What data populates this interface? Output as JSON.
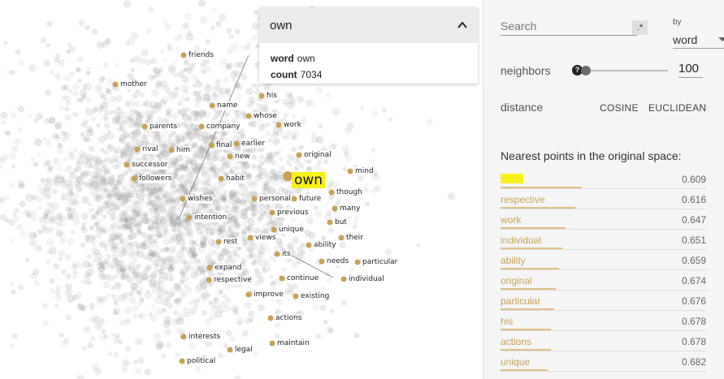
{
  "scatter": {
    "cloud_color": "#888888",
    "point_color": "#c9a155",
    "labels": [
      {
        "id": "friends",
        "text": "friends"
      },
      {
        "id": "mother",
        "text": "mother"
      },
      {
        "id": "his",
        "text": "his"
      },
      {
        "id": "name",
        "text": "name"
      },
      {
        "id": "whose",
        "text": "whose"
      },
      {
        "id": "parents",
        "text": "parents"
      },
      {
        "id": "company",
        "text": "company"
      },
      {
        "id": "work",
        "text": "work"
      },
      {
        "id": "earlier",
        "text": "earlier"
      },
      {
        "id": "final",
        "text": "final"
      },
      {
        "id": "rival",
        "text": "rival"
      },
      {
        "id": "him",
        "text": "him"
      },
      {
        "id": "new",
        "text": "new"
      },
      {
        "id": "original",
        "text": "original"
      },
      {
        "id": "successor",
        "text": "successor"
      },
      {
        "id": "mind",
        "text": "mind"
      },
      {
        "id": "followers",
        "text": "followers"
      },
      {
        "id": "habit",
        "text": "habit"
      },
      {
        "id": "own",
        "text": "own"
      },
      {
        "id": "though",
        "text": "though"
      },
      {
        "id": "wishes",
        "text": "wishes"
      },
      {
        "id": "personal",
        "text": "personal"
      },
      {
        "id": "future",
        "text": "future"
      },
      {
        "id": "many",
        "text": "many"
      },
      {
        "id": "previous",
        "text": "previous"
      },
      {
        "id": "intention",
        "text": "intention"
      },
      {
        "id": "but",
        "text": "but"
      },
      {
        "id": "unique",
        "text": "unique"
      },
      {
        "id": "their",
        "text": "their"
      },
      {
        "id": "views",
        "text": "views"
      },
      {
        "id": "rest",
        "text": "rest"
      },
      {
        "id": "ability",
        "text": "ability"
      },
      {
        "id": "its",
        "text": "its"
      },
      {
        "id": "needs",
        "text": "needs"
      },
      {
        "id": "particular",
        "text": "particular"
      },
      {
        "id": "expand",
        "text": "expand"
      },
      {
        "id": "continue",
        "text": "continue"
      },
      {
        "id": "respective",
        "text": "respective"
      },
      {
        "id": "individual",
        "text": "individual"
      },
      {
        "id": "improve",
        "text": "improve"
      },
      {
        "id": "existing",
        "text": "existing"
      },
      {
        "id": "actions",
        "text": "actions"
      },
      {
        "id": "interests",
        "text": "interests"
      },
      {
        "id": "maintain",
        "text": "maintain"
      },
      {
        "id": "legal",
        "text": "legal"
      },
      {
        "id": "political",
        "text": "political"
      }
    ]
  },
  "info_card": {
    "title": "own",
    "fields": [
      {
        "key": "word",
        "value": "own"
      },
      {
        "key": "count",
        "value": "7034"
      }
    ]
  },
  "panel": {
    "search_placeholder": "Search",
    "regex_label": ".*",
    "by_label": "by",
    "by_value": "word",
    "neighbors_label": "neighbors",
    "neighbors_value": "100",
    "neighbors_fraction": 0.05,
    "distance_label": "distance",
    "cosine_label": "COSINE",
    "euclidean_label": "EUCLIDEAN",
    "nearest_title": "Nearest points in the original space:",
    "nearest": [
      {
        "label": "",
        "value": "0.609"
      },
      {
        "label": "respective",
        "value": "0.616"
      },
      {
        "label": "work",
        "value": "0.647"
      },
      {
        "label": "individual",
        "value": "0.651"
      },
      {
        "label": "ability",
        "value": "0.659"
      },
      {
        "label": "original",
        "value": "0.674"
      },
      {
        "label": "particular",
        "value": "0.676"
      },
      {
        "label": "his",
        "value": "0.678"
      },
      {
        "label": "actions",
        "value": "0.678"
      },
      {
        "label": "unique",
        "value": "0.682"
      }
    ]
  }
}
